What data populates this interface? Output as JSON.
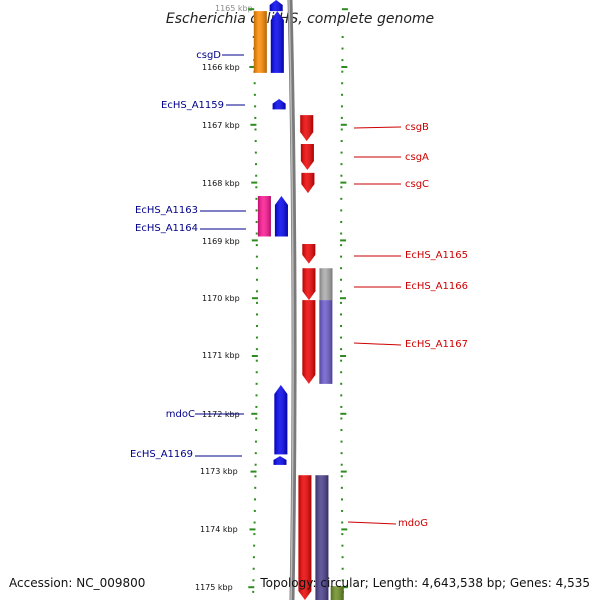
{
  "title": "Escherichia coli HS, complete genome",
  "footer": {
    "accession": "Accession: NC_009800",
    "topology": "Topology: circular; Length: 4,643,538 bp; Genes: 4,535"
  },
  "colors": {
    "tick": "#2e8b1f",
    "backbone": "#888888",
    "left_label": "#00008b",
    "right_label": "#cc0000"
  },
  "scale": {
    "labels": [
      "1165 kbp",
      "1166 kbp",
      "1167 kbp",
      "1168 kbp",
      "1169 kbp",
      "1170 kbp",
      "1171 kbp",
      "1172 kbp",
      "1173 kbp",
      "1174 kbp",
      "1175 kbp"
    ]
  },
  "left_labels": [
    {
      "text": "csgD"
    },
    {
      "text": "EcHS_A1159"
    },
    {
      "text": "EcHS_A1163"
    },
    {
      "text": "EcHS_A1164"
    },
    {
      "text": "mdoC"
    },
    {
      "text": "EcHS_A1169"
    }
  ],
  "right_labels": [
    {
      "text": "csgB"
    },
    {
      "text": "csgA"
    },
    {
      "text": "csgC"
    },
    {
      "text": "EcHS_A1165"
    },
    {
      "text": "EcHS_A1166"
    },
    {
      "text": "EcHS_A1167"
    },
    {
      "text": "mdoG"
    }
  ],
  "features": [
    {
      "name": "csgD-gene",
      "strand": "reverse",
      "lane": "inner",
      "start_kbp": 1165.05,
      "end_kbp": 1166.12,
      "color": "#0000ee"
    },
    {
      "name": "csgD-cog",
      "strand": "reverse",
      "lane": "outer",
      "start_kbp": 1165.05,
      "end_kbp": 1166.12,
      "color": "#ff8c00"
    },
    {
      "name": "EcHS_A1159-gene",
      "strand": "reverse",
      "lane": "inner",
      "start_kbp": 1166.57,
      "end_kbp": 1166.75,
      "color": "#0000ee"
    },
    {
      "name": "csgB-gene",
      "strand": "forward",
      "lane": "inner",
      "start_kbp": 1166.85,
      "end_kbp": 1167.3,
      "color": "#ee0000"
    },
    {
      "name": "csgA-gene",
      "strand": "forward",
      "lane": "inner",
      "start_kbp": 1167.35,
      "end_kbp": 1167.8,
      "color": "#ee0000"
    },
    {
      "name": "csgC-gene",
      "strand": "forward",
      "lane": "inner",
      "start_kbp": 1167.85,
      "end_kbp": 1168.2,
      "color": "#ee0000"
    },
    {
      "name": "EcHS_A1163-cog",
      "strand": "reverse",
      "lane": "outer",
      "start_kbp": 1168.25,
      "end_kbp": 1168.95,
      "color": "#ff1493"
    },
    {
      "name": "EcHS_A1164-gene",
      "strand": "reverse",
      "lane": "inner",
      "start_kbp": 1168.25,
      "end_kbp": 1168.95,
      "color": "#0000ee"
    },
    {
      "name": "EcHS_A1165-gene",
      "strand": "forward",
      "lane": "inner",
      "start_kbp": 1169.08,
      "end_kbp": 1169.42,
      "color": "#ee0000"
    },
    {
      "name": "EcHS_A1166-gene",
      "strand": "forward",
      "lane": "inner",
      "start_kbp": 1169.5,
      "end_kbp": 1170.05,
      "color": "#ee0000"
    },
    {
      "name": "EcHS_A1166-cog",
      "strand": "forward",
      "lane": "outer",
      "start_kbp": 1169.5,
      "end_kbp": 1170.05,
      "color": "#aaaaaa"
    },
    {
      "name": "EcHS_A1167-gene",
      "strand": "forward",
      "lane": "inner",
      "start_kbp": 1170.05,
      "end_kbp": 1171.5,
      "color": "#ee0000"
    },
    {
      "name": "EcHS_A1167-cog",
      "strand": "forward",
      "lane": "outer",
      "start_kbp": 1170.05,
      "end_kbp": 1171.5,
      "color": "#6a5acd"
    },
    {
      "name": "mdoC-gene",
      "strand": "reverse",
      "lane": "inner",
      "start_kbp": 1171.52,
      "end_kbp": 1172.72,
      "color": "#0000ee"
    },
    {
      "name": "EcHS_A1169-gene",
      "strand": "reverse",
      "lane": "inner",
      "start_kbp": 1172.75,
      "end_kbp": 1172.9,
      "color": "#0000ee"
    },
    {
      "name": "mdoG-gene",
      "strand": "forward",
      "lane": "inner",
      "start_kbp": 1173.08,
      "end_kbp": 1175.3,
      "color": "#ee0000"
    },
    {
      "name": "mdoG-cog",
      "strand": "forward",
      "lane": "outer",
      "start_kbp": 1173.08,
      "end_kbp": 1175.3,
      "color": "#483d8b"
    },
    {
      "name": "mdoG-cog2",
      "strand": "forward",
      "lane": "outer2",
      "start_kbp": 1175.0,
      "end_kbp": 1175.3,
      "color": "#6b8e23"
    },
    {
      "name": "top-gene",
      "strand": "reverse",
      "lane": "inner",
      "start_kbp": 1164.8,
      "end_kbp": 1165.05,
      "color": "#0000ee"
    }
  ]
}
